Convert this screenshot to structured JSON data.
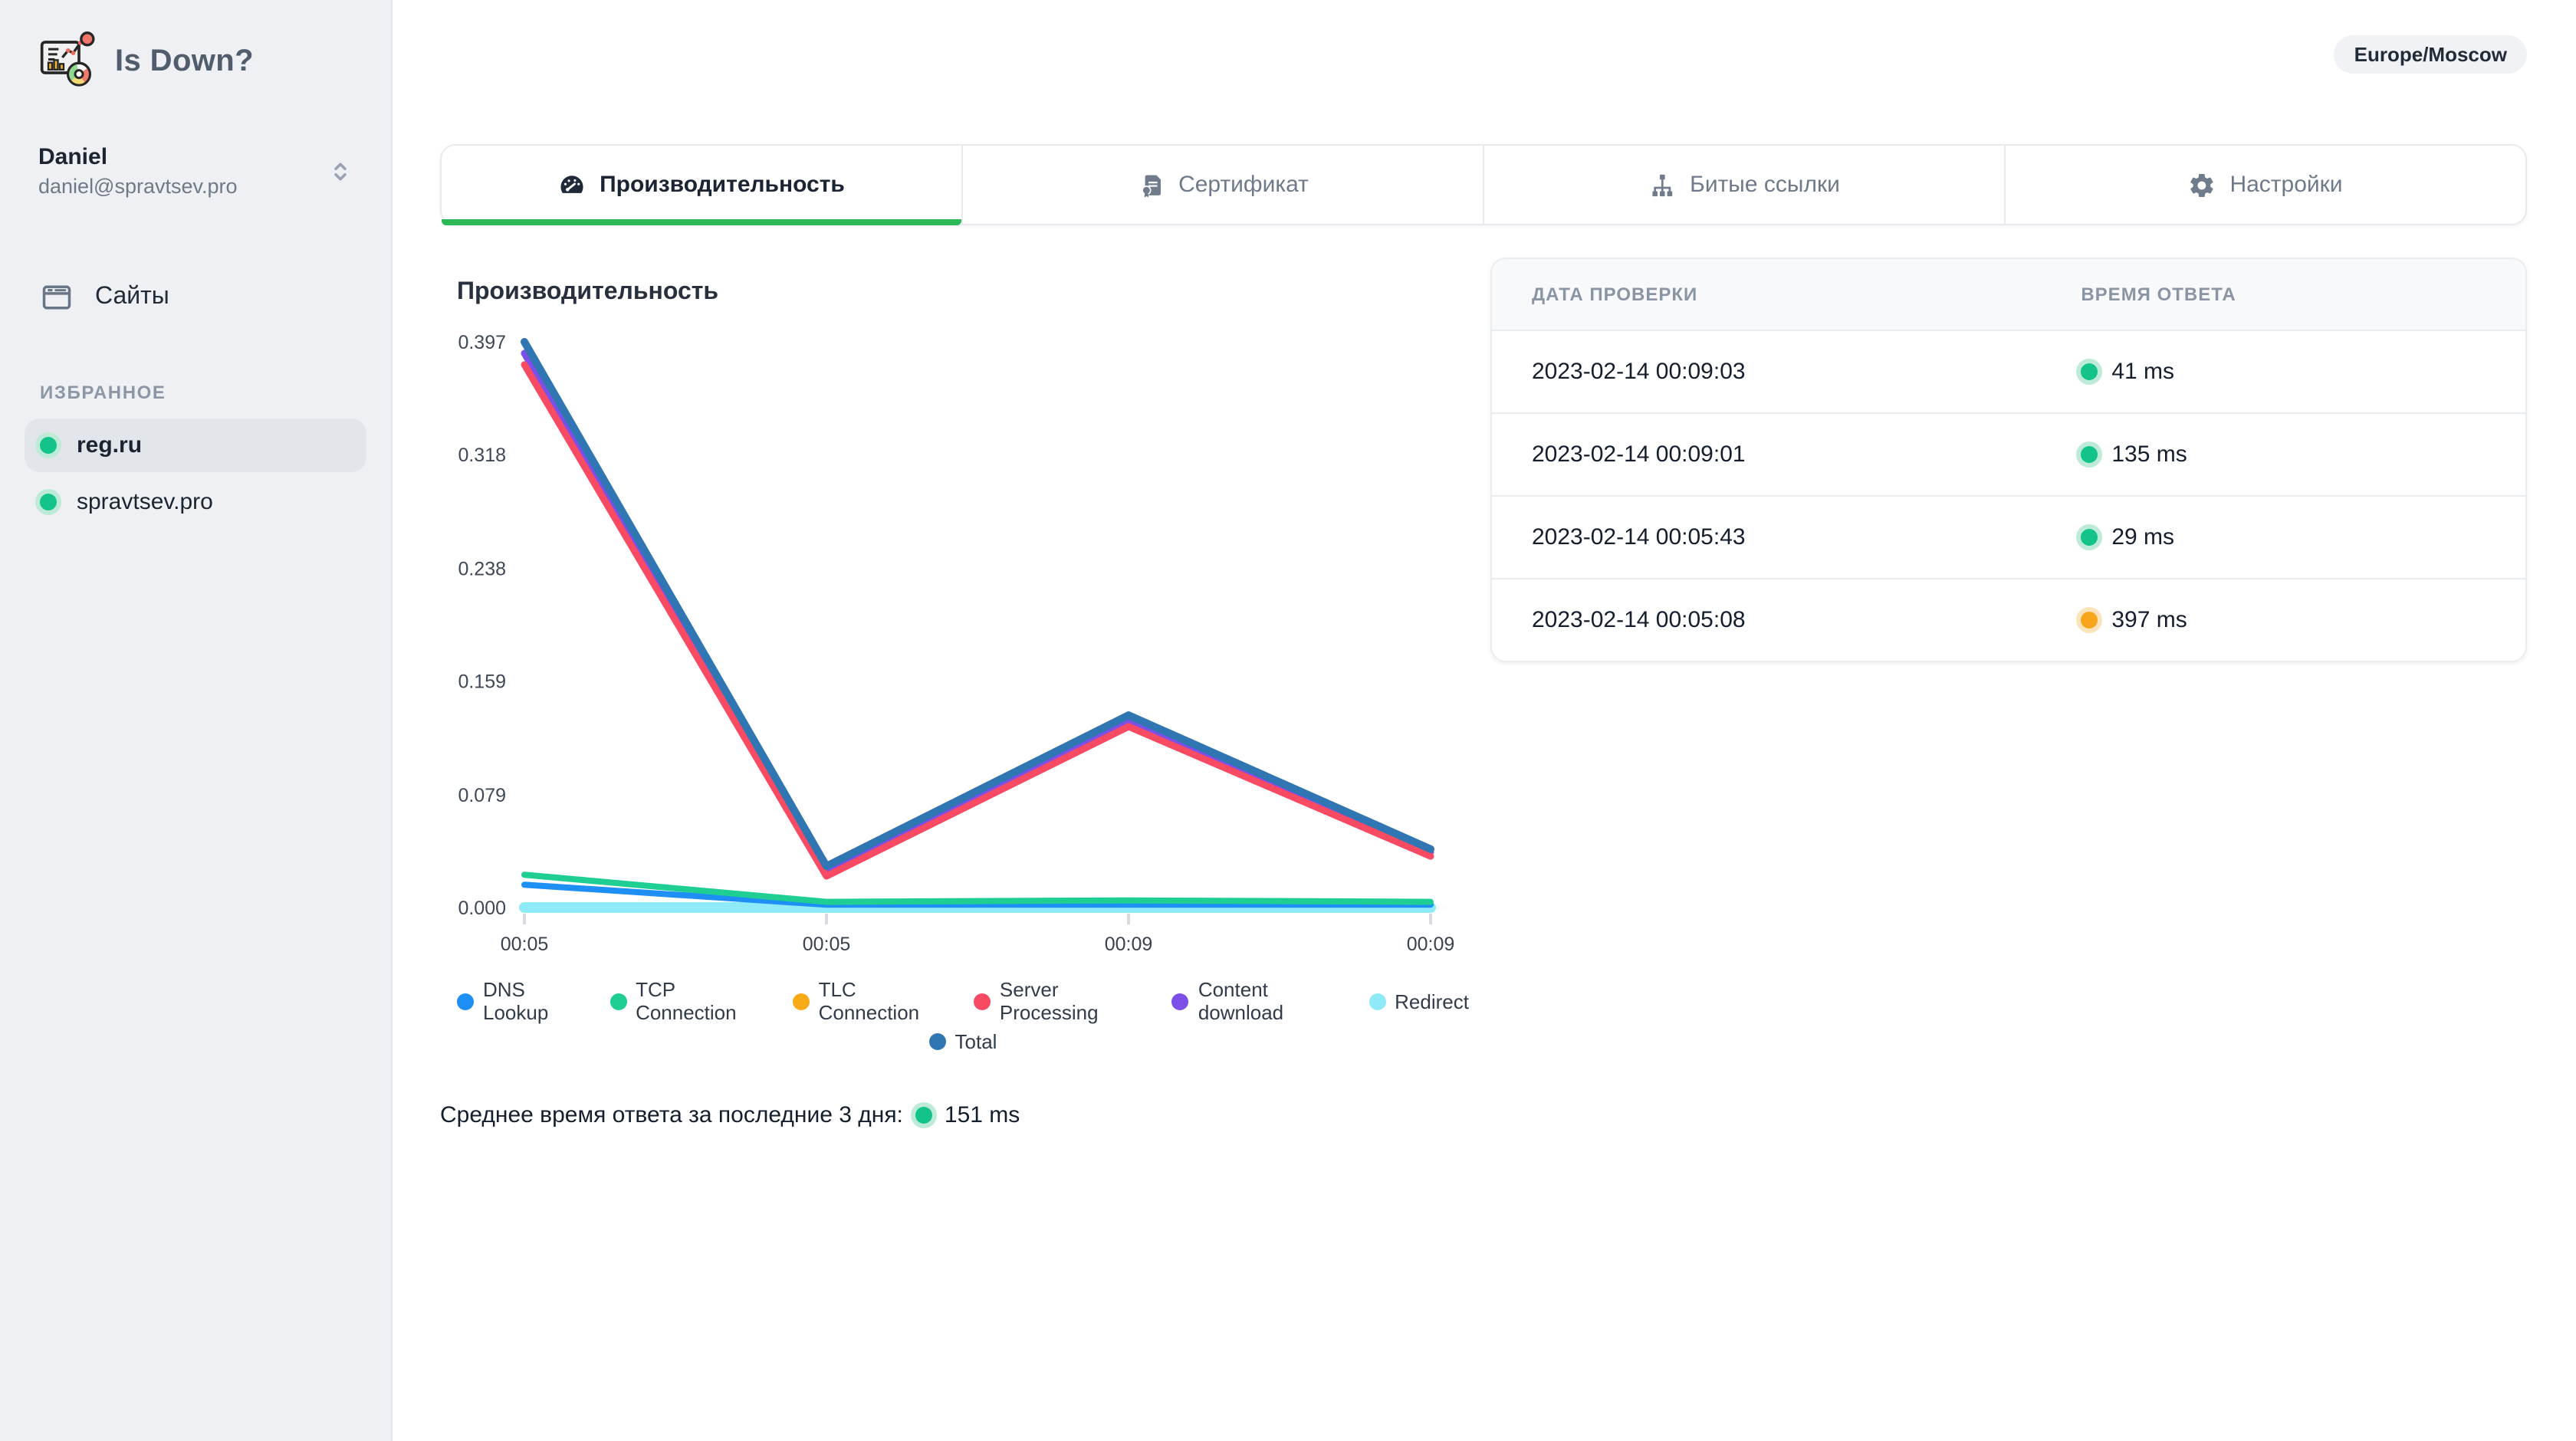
{
  "app": {
    "name": "Is Down?"
  },
  "header": {
    "timezone": "Europe/Moscow"
  },
  "sidebar": {
    "logo_title": "Is Down?",
    "user": {
      "name": "Daniel",
      "email": "daniel@spravtsev.pro"
    },
    "sites_label": "Сайты",
    "favorites_header": "ИЗБРАННОЕ",
    "favorites": [
      {
        "label": "reg.ru",
        "active": true,
        "dot": "#13c389",
        "ring": "#bdebd8"
      },
      {
        "label": "spravtsev.pro",
        "active": false,
        "dot": "#13c389",
        "ring": "#bdebd8"
      }
    ]
  },
  "tabs": [
    {
      "label": "Производительность",
      "icon": "gauge-icon",
      "active": true
    },
    {
      "label": "Сертификат",
      "icon": "certificate-icon",
      "active": false
    },
    {
      "label": "Битые ссылки",
      "icon": "sitemap-icon",
      "active": false
    },
    {
      "label": "Настройки",
      "icon": "gear-icon",
      "active": false
    }
  ],
  "panel": {
    "title": "Производительность"
  },
  "chart_data": {
    "type": "line",
    "title": "Производительность",
    "x": [
      "00:05",
      "00:05",
      "00:09",
      "00:09"
    ],
    "y_ticks": [
      "0.397",
      "0.318",
      "0.238",
      "0.159",
      "0.079",
      "0.000"
    ],
    "ylim": [
      0,
      0.397
    ],
    "unit": "seconds",
    "grid": false,
    "legend_position": "bottom",
    "series": [
      {
        "name": "DNS Lookup",
        "color": "#1e8ff5",
        "width": 4,
        "draw_order": 3,
        "values": [
          0.016,
          0.002,
          0.002,
          0.002
        ]
      },
      {
        "name": "TCP Connection",
        "color": "#1fce92",
        "width": 4,
        "draw_order": 4,
        "values": [
          0.023,
          0.004,
          0.005,
          0.004
        ]
      },
      {
        "name": "TLC Connection",
        "color": "#f9ab17",
        "width": 3,
        "draw_order": 1,
        "values": [
          0.001,
          0.001,
          0.001,
          0.001
        ]
      },
      {
        "name": "Server Processing",
        "color": "#f84b63",
        "width": 4.5,
        "draw_order": 6,
        "values": [
          0.381,
          0.022,
          0.127,
          0.036
        ]
      },
      {
        "name": "Content download",
        "color": "#7b4fe8",
        "width": 4.5,
        "draw_order": 5,
        "values": [
          0.389,
          0.026,
          0.131,
          0.039
        ]
      },
      {
        "name": "Redirect",
        "color": "#8feaf8",
        "width": 7,
        "draw_order": 2,
        "values": [
          0.0,
          0.0,
          0.0,
          0.0
        ]
      },
      {
        "name": "Total",
        "color": "#2f76b3",
        "width": 5,
        "draw_order": 7,
        "values": [
          0.397,
          0.029,
          0.135,
          0.041
        ]
      }
    ]
  },
  "table": {
    "headers": [
      "ДАТА ПРОВЕРКИ",
      "ВРЕМЯ ОТВЕТА"
    ],
    "rows": [
      {
        "date": "2023-02-14 00:09:03",
        "time": "41 ms",
        "dot": "#13c389",
        "ring": "#bdebd8"
      },
      {
        "date": "2023-02-14 00:09:01",
        "time": "135 ms",
        "dot": "#13c389",
        "ring": "#bdebd8"
      },
      {
        "date": "2023-02-14 00:05:43",
        "time": "29 ms",
        "dot": "#13c389",
        "ring": "#bdebd8"
      },
      {
        "date": "2023-02-14 00:05:08",
        "time": "397 ms",
        "dot": "#f7a51b",
        "ring": "#fbe3bb"
      }
    ]
  },
  "summary": {
    "label": "Среднее время ответа за последние 3 дня:",
    "value": "151 ms",
    "dot": "#13c389",
    "ring": "#bdebd8"
  }
}
